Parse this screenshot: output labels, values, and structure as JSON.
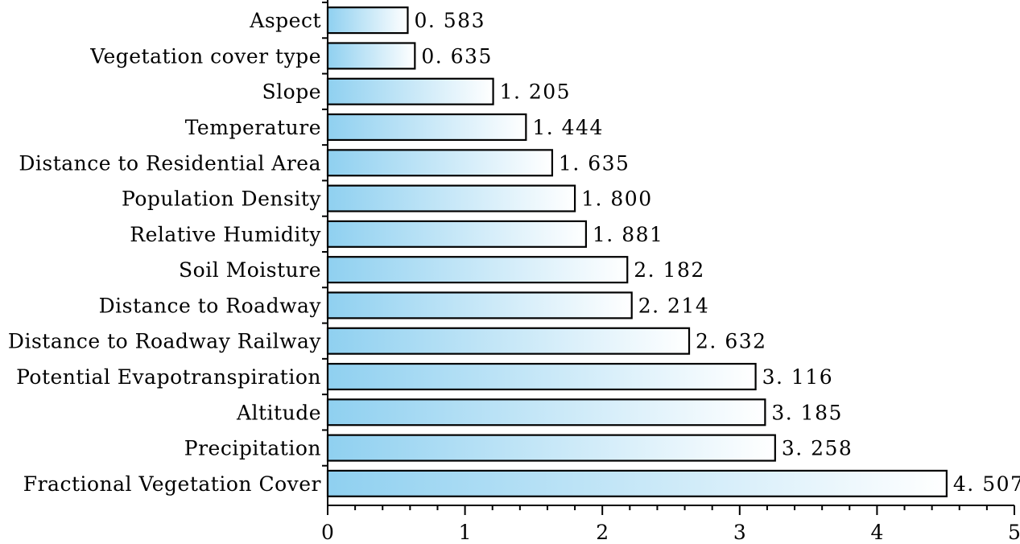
{
  "chart_data": {
    "type": "bar",
    "orientation": "horizontal",
    "categories": [
      "Aspect",
      "Vegetation cover type",
      "Slope",
      "Temperature",
      "Distance to Residential Area",
      "Population Density",
      "Relative Humidity",
      "Soil Moisture",
      "Distance to Roadway",
      "Distance to Roadway Railway",
      "Potential Evapotranspiration",
      "Altitude",
      "Precipitation",
      "Fractional Vegetation Cover"
    ],
    "values": [
      0.583,
      0.635,
      1.205,
      1.444,
      1.635,
      1.8,
      1.881,
      2.182,
      2.214,
      2.632,
      3.116,
      3.185,
      3.258,
      4.507
    ],
    "value_labels": [
      "0. 583",
      "0. 635",
      "1. 205",
      "1. 444",
      "1. 635",
      "1. 800",
      "1. 881",
      "2. 182",
      "2. 214",
      "2. 632",
      "3. 116",
      "3. 185",
      "3. 258",
      "4. 507"
    ],
    "x_ticks": [
      "0",
      "1",
      "2",
      "3",
      "4",
      "5"
    ],
    "xlim": [
      0,
      5
    ],
    "title": "",
    "xlabel": "",
    "ylabel": "",
    "grid": false,
    "colors": {
      "bar_start": "#8fd0f0",
      "bar_end": "#ffffff",
      "outline": "#000000"
    }
  }
}
